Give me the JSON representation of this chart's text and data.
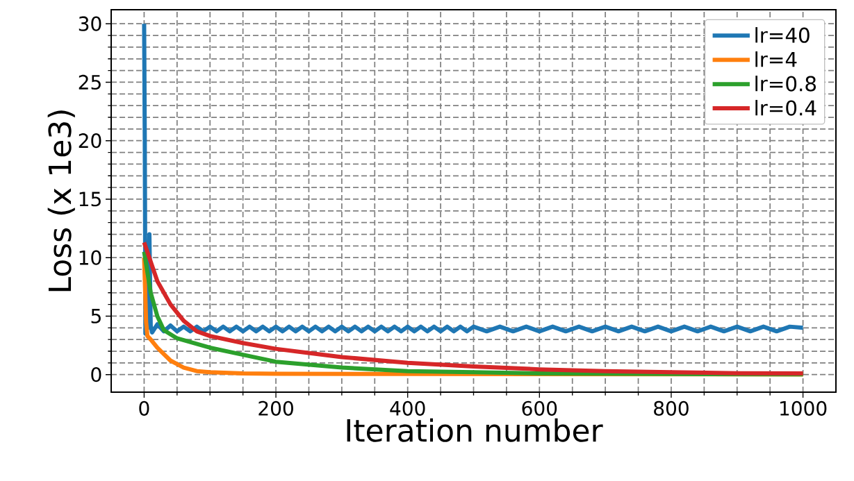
{
  "chart_data": {
    "type": "line",
    "xlabel": "Iteration number",
    "ylabel": "Loss (x 1e3)",
    "xlim": [
      -50,
      1050
    ],
    "ylim": [
      -1.5,
      31.2
    ],
    "xticks": [
      0,
      200,
      400,
      600,
      800,
      1000
    ],
    "yticks": [
      0,
      5,
      10,
      15,
      20,
      25,
      30
    ],
    "grid": true,
    "legend": "top right",
    "line_style": "solid",
    "series": [
      {
        "name": "lr=40",
        "color": "#1f77b4",
        "x": [
          0,
          1,
          2,
          4,
          6,
          8,
          10,
          12,
          20,
          30,
          40,
          50,
          60,
          70,
          80,
          90,
          100,
          110,
          120,
          130,
          140,
          150,
          160,
          170,
          180,
          190,
          200,
          210,
          220,
          230,
          240,
          250,
          260,
          270,
          280,
          290,
          300,
          310,
          320,
          330,
          340,
          350,
          360,
          370,
          380,
          390,
          400,
          410,
          420,
          430,
          440,
          450,
          460,
          470,
          480,
          490,
          500,
          520,
          540,
          560,
          580,
          600,
          620,
          640,
          660,
          680,
          700,
          720,
          740,
          760,
          780,
          800,
          820,
          840,
          860,
          880,
          900,
          920,
          940,
          960,
          980,
          1000
        ],
        "values": [
          30,
          20,
          3.5,
          11,
          4,
          12,
          4.2,
          3.6,
          4.3,
          3.7,
          4.2,
          3.7,
          4.1,
          3.7,
          4.1,
          3.7,
          4.1,
          3.7,
          4.1,
          3.7,
          4.1,
          3.7,
          4.1,
          3.7,
          4.1,
          3.7,
          4.1,
          3.7,
          4.1,
          3.7,
          4.1,
          3.7,
          4.1,
          3.7,
          4.1,
          3.7,
          4.1,
          3.7,
          4.1,
          3.7,
          4.1,
          3.7,
          4.1,
          3.7,
          4.1,
          3.7,
          4.1,
          3.7,
          4.1,
          3.7,
          4.1,
          3.7,
          4.1,
          3.7,
          4.1,
          3.7,
          4.1,
          3.7,
          4.1,
          3.7,
          4.1,
          3.7,
          4.1,
          3.7,
          4.1,
          3.7,
          4.1,
          3.7,
          4.1,
          3.7,
          4.1,
          3.7,
          4.1,
          3.7,
          4.1,
          3.7,
          4.1,
          3.7,
          4.1,
          3.7,
          4.1,
          4.0
        ]
      },
      {
        "name": "lr=4",
        "color": "#ff7f0e",
        "x": [
          0,
          3,
          5,
          10,
          20,
          40,
          60,
          80,
          100,
          150,
          200,
          400,
          1000
        ],
        "values": [
          10,
          4.5,
          3.3,
          3,
          2.3,
          1.2,
          0.6,
          0.3,
          0.2,
          0.1,
          0.07,
          0.05,
          0.02
        ]
      },
      {
        "name": "lr=0.8",
        "color": "#2ca02c",
        "x": [
          0,
          10,
          20,
          30,
          50,
          100,
          150,
          200,
          300,
          400,
          500,
          600,
          800,
          1000
        ],
        "values": [
          10.5,
          7,
          5,
          3.8,
          3.1,
          2.3,
          1.7,
          1.1,
          0.6,
          0.3,
          0.2,
          0.1,
          0.05,
          0.03
        ]
      },
      {
        "name": "lr=0.4",
        "color": "#d62728",
        "x": [
          0,
          20,
          40,
          60,
          80,
          100,
          150,
          200,
          300,
          400,
          500,
          600,
          700,
          800,
          900,
          1000
        ],
        "values": [
          11.3,
          8,
          6,
          4.6,
          3.7,
          3.3,
          2.7,
          2.2,
          1.5,
          1.0,
          0.7,
          0.45,
          0.3,
          0.2,
          0.12,
          0.1
        ]
      }
    ]
  }
}
